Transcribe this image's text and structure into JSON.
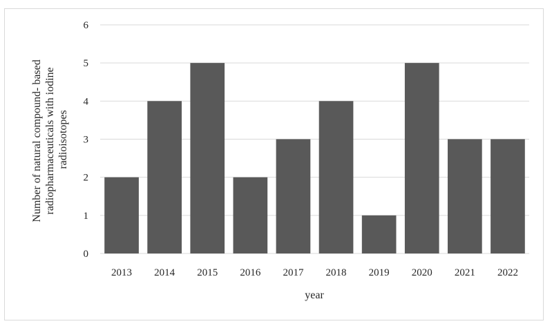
{
  "chart_data": {
    "type": "bar",
    "categories": [
      "2013",
      "2014",
      "2015",
      "2016",
      "2017",
      "2018",
      "2019",
      "2020",
      "2021",
      "2022"
    ],
    "values": [
      2,
      4,
      5,
      2,
      3,
      4,
      1,
      5,
      3,
      3
    ],
    "title": "",
    "xlabel": "year",
    "ylabel_lines": [
      "Number of natural compound- based",
      "radiopharmaceuticals with iodine",
      "radioisotopes"
    ],
    "ylim": [
      0,
      6
    ],
    "yticks": [
      0,
      1,
      2,
      3,
      4,
      5,
      6
    ],
    "grid": true,
    "legend": "none",
    "bar_color": "#595959",
    "grid_color": "#d9d9d9"
  }
}
